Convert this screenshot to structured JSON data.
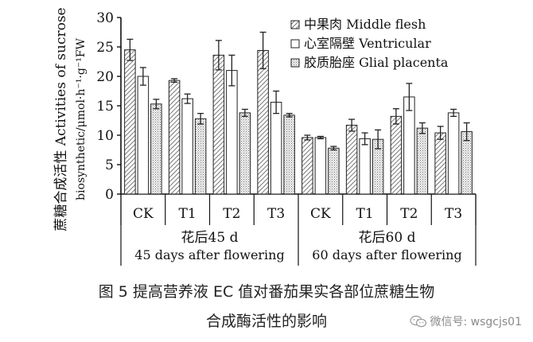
{
  "chart_data": {
    "type": "bar",
    "ylabel_cn": "蔗糖合成活性 Activities of sucrose",
    "ylabel_en": "biosynthetic/μmol·h⁻¹·g⁻¹FW",
    "ylim": [
      0,
      30
    ],
    "yticks": [
      "0",
      "5",
      "10",
      "15",
      "20",
      "25",
      "30"
    ],
    "categories": [
      "CK",
      "T1",
      "T2",
      "T3",
      "CK",
      "T1",
      "T2",
      "T3"
    ],
    "groups": [
      {
        "label_cn": "花后45 d",
        "label_en": "45 days after flowering"
      },
      {
        "label_cn": "花后60 d",
        "label_en": "60 days after flowering"
      }
    ],
    "series": [
      {
        "name": "中果肉 Middle flesh",
        "pattern": "hatch",
        "values": [
          24.5,
          19.3,
          23.6,
          24.4,
          9.6,
          11.7,
          13.2,
          10.4
        ],
        "errors": [
          1.8,
          0.3,
          2.5,
          3.1,
          0.4,
          1.0,
          1.3,
          1.1
        ]
      },
      {
        "name": "心室隔壁 Ventricular",
        "pattern": "plain",
        "values": [
          20.0,
          16.2,
          21.0,
          15.6,
          9.6,
          9.4,
          16.5,
          13.8
        ],
        "errors": [
          1.5,
          0.8,
          2.6,
          1.9,
          0.2,
          1.0,
          2.3,
          0.6
        ]
      },
      {
        "name": "胶质胎座 Glial placenta",
        "pattern": "dots",
        "values": [
          15.3,
          12.8,
          13.8,
          13.4,
          7.8,
          9.3,
          11.2,
          10.6
        ],
        "errors": [
          0.8,
          0.9,
          0.6,
          0.3,
          0.3,
          1.6,
          0.9,
          1.5
        ]
      }
    ]
  },
  "caption": {
    "line1": "图 5   提高营养液 EC 值对番茄果实各部位蔗糖生物",
    "line2": "合成酶活性的影响"
  },
  "watermark": {
    "text": "微信号: wsgcjs01"
  }
}
